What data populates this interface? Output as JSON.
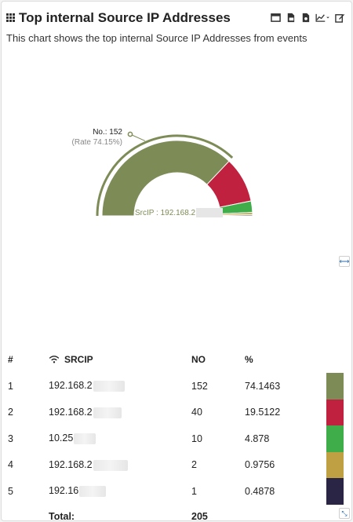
{
  "header": {
    "title": "Top internal Source IP Addresses",
    "subtitle": "This chart shows the top internal Source IP Addresses from events",
    "tools": [
      "window-icon",
      "csv-export-icon",
      "pdf-export-icon",
      "chart-type-icon",
      "edit-icon"
    ]
  },
  "tooltip": {
    "label": "No.: 152",
    "rate": "(Rate 74.15%)"
  },
  "center_label": "SrcIP : 192.168.2",
  "table": {
    "headers": [
      "#",
      "SRCIP",
      "NO",
      "%"
    ],
    "rows": [
      {
        "rank": "1",
        "ip": "192.168.2",
        "no": "152",
        "pct": "74.1463",
        "color": "#7d8c56"
      },
      {
        "rank": "2",
        "ip": "192.168.2",
        "no": "40",
        "pct": "19.5122",
        "color": "#c0213f"
      },
      {
        "rank": "3",
        "ip": "10.25",
        "no": "10",
        "pct": "4.878",
        "color": "#3fae4a"
      },
      {
        "rank": "4",
        "ip": "192.168.2",
        "no": "2",
        "pct": "0.9756",
        "color": "#bfa043"
      },
      {
        "rank": "5",
        "ip": "192.16",
        "no": "1",
        "pct": "0.4878",
        "color": "#2b2545"
      }
    ],
    "total_label": "Total:",
    "total_value": "205"
  },
  "chart_data": {
    "type": "pie",
    "variant": "semi-donut",
    "categories": [
      "192.168.2",
      "192.168.2",
      "10.25",
      "192.168.2",
      "192.16"
    ],
    "values": [
      152,
      40,
      10,
      2,
      1
    ],
    "colors": [
      "#7d8c56",
      "#c0213f",
      "#3fae4a",
      "#bfa043",
      "#2b2545"
    ],
    "title": "Top internal Source IP Addresses"
  }
}
